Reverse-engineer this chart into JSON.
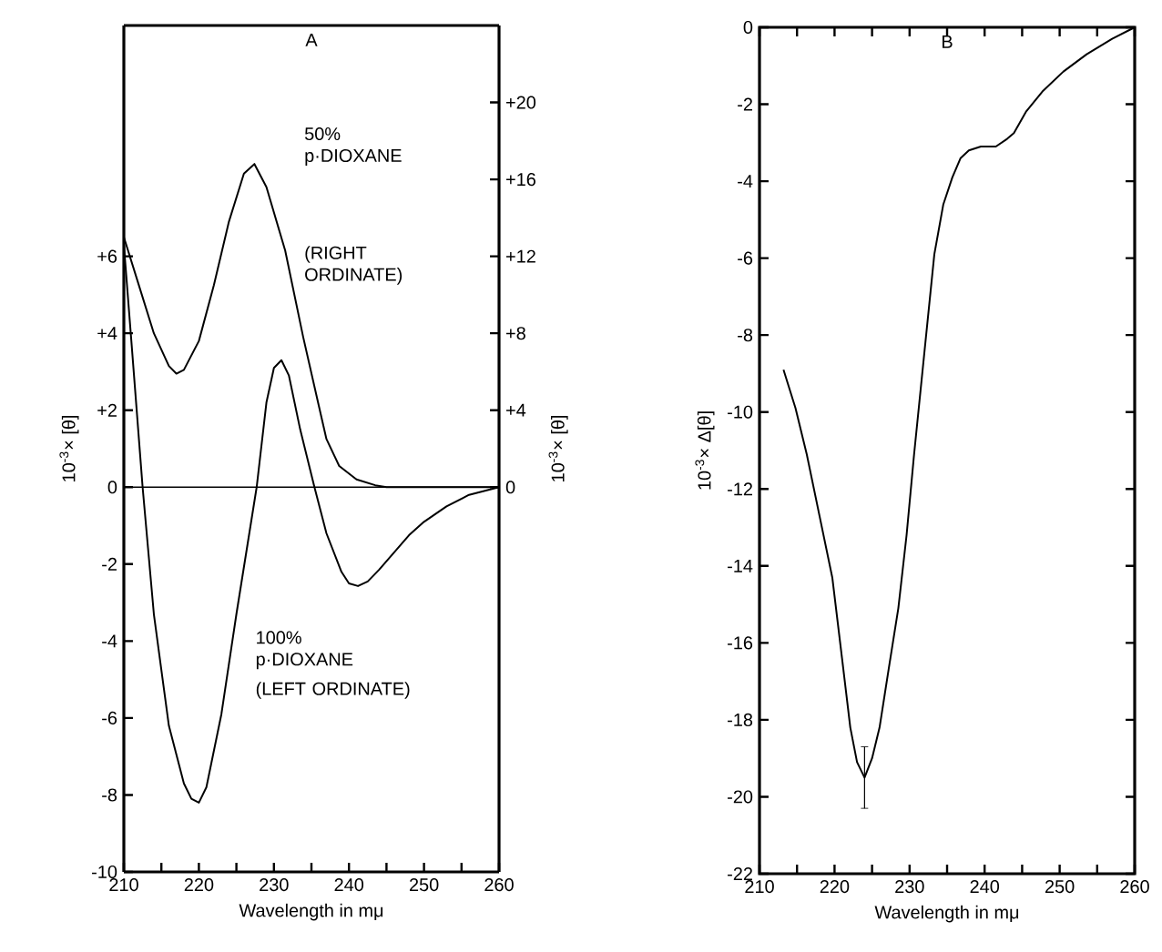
{
  "chart_data": [
    {
      "type": "line",
      "title": "A",
      "xlabel": "Wavelength in mμ",
      "ylabel": "10$^{-3}$× [θ]",
      "y2label": "10$^{-3}$× [θ]",
      "xlim": [
        210,
        260
      ],
      "ylim": [
        -10,
        12
      ],
      "y2lim": [
        -20,
        24
      ],
      "xticks": [
        210,
        {
          "value": 215,
          "label": null
        },
        220,
        {
          "value": 225,
          "label": null
        },
        230,
        {
          "value": 235,
          "label": null
        },
        240,
        {
          "value": 245,
          "label": null
        },
        250,
        {
          "value": 255,
          "label": null
        },
        260
      ],
      "yticks": [
        -10,
        -8,
        -6,
        -4,
        -2,
        0,
        {
          "value": 2,
          "label": "+2"
        },
        {
          "value": 4,
          "label": "+4"
        },
        {
          "value": 6,
          "label": "+6"
        }
      ],
      "y2ticks": [
        0,
        {
          "value": 4,
          "label": "+4"
        },
        {
          "value": 8,
          "label": "+8"
        },
        {
          "value": 12,
          "label": "+12"
        },
        {
          "value": 16,
          "label": "+16"
        },
        {
          "value": 20,
          "label": "+20"
        }
      ],
      "series": [
        {
          "name": "50% p·DIOXANE",
          "color": "#000000",
          "axis": "y2",
          "x": [
            210,
            212,
            214,
            216,
            217,
            218,
            220,
            222,
            224,
            226,
            227.4,
            229,
            231.5,
            233.9,
            236,
            237,
            238.7,
            241,
            243.5,
            245,
            250,
            260
          ],
          "values": [
            13,
            10.5,
            8,
            6.3,
            5.9,
            6.1,
            7.6,
            10.5,
            13.8,
            16.3,
            16.8,
            15.6,
            12.3,
            7.8,
            4.2,
            2.5,
            1.1,
            0.4,
            0.1,
            0,
            0,
            0
          ]
        },
        {
          "name": "100% p·DIOXANE",
          "color": "#000000",
          "x": [
            210,
            211,
            212.5,
            214,
            216,
            218,
            219,
            220,
            221,
            223,
            225,
            227.7,
            229,
            230,
            231,
            232,
            233.5,
            235.4,
            237,
            239,
            240,
            241.2,
            242.5,
            244,
            246,
            248,
            250,
            253,
            256,
            260
          ],
          "values": [
            6.3,
            3.8,
            0,
            -3.3,
            -6.2,
            -7.7,
            -8.1,
            -8.2,
            -7.8,
            -5.9,
            -3.3,
            0,
            2.2,
            3.1,
            3.3,
            2.9,
            1.5,
            0,
            -1.2,
            -2.2,
            -2.5,
            -2.57,
            -2.45,
            -2.15,
            -1.7,
            -1.25,
            -0.9,
            -0.5,
            -0.2,
            0
          ]
        }
      ],
      "annotations": [
        "(RIGHT ORDINATE)",
        "(LEFT ORDINATE)"
      ],
      "ref_lines": [
        {
          "axis": "y",
          "value": 0
        }
      ]
    },
    {
      "type": "line",
      "title": "B",
      "xlabel": "Wavelength in mμ",
      "ylabel": "10$^{-3}$× Δ[θ]",
      "xlim": [
        210,
        260
      ],
      "ylim": [
        -22,
        0
      ],
      "xticks": [
        210,
        {
          "value": 215,
          "label": null
        },
        220,
        {
          "value": 225,
          "label": null
        },
        230,
        {
          "value": 235,
          "label": null
        },
        240,
        {
          "value": 245,
          "label": null
        },
        250,
        {
          "value": 255,
          "label": null
        },
        260
      ],
      "yticks": [
        -22,
        -20,
        -18,
        -16,
        -14,
        -12,
        -10,
        -8,
        -6,
        -4,
        -2,
        0
      ],
      "series": [
        {
          "color": "#000000",
          "x": [
            213.2,
            214.8,
            216.3,
            218,
            219.7,
            221,
            222.1,
            223,
            224,
            225,
            226,
            227.2,
            228.5,
            229.6,
            230.6,
            232,
            233.3,
            234.5,
            235.7,
            236.8,
            237.9,
            239.5,
            241.5,
            243,
            243.9,
            245.5,
            247.8,
            250.5,
            253.6,
            257,
            260
          ],
          "values": [
            -8.9,
            -9.9,
            -11.1,
            -12.7,
            -14.3,
            -16.4,
            -18.2,
            -19.1,
            -19.5,
            -19,
            -18.2,
            -16.7,
            -15.1,
            -13.2,
            -11.1,
            -8.4,
            -5.9,
            -4.6,
            -3.9,
            -3.4,
            -3.2,
            -3.1,
            -3.1,
            -2.9,
            -2.75,
            -2.2,
            -1.65,
            -1.15,
            -0.7,
            -0.3,
            0
          ],
          "errors": [
            null,
            null,
            null,
            null,
            null,
            null,
            null,
            null,
            0.8,
            null,
            null,
            null,
            null,
            null,
            null,
            null,
            null,
            null,
            null,
            null,
            null,
            null,
            null,
            null,
            null,
            null,
            null,
            null,
            null,
            null,
            null
          ]
        }
      ]
    }
  ]
}
